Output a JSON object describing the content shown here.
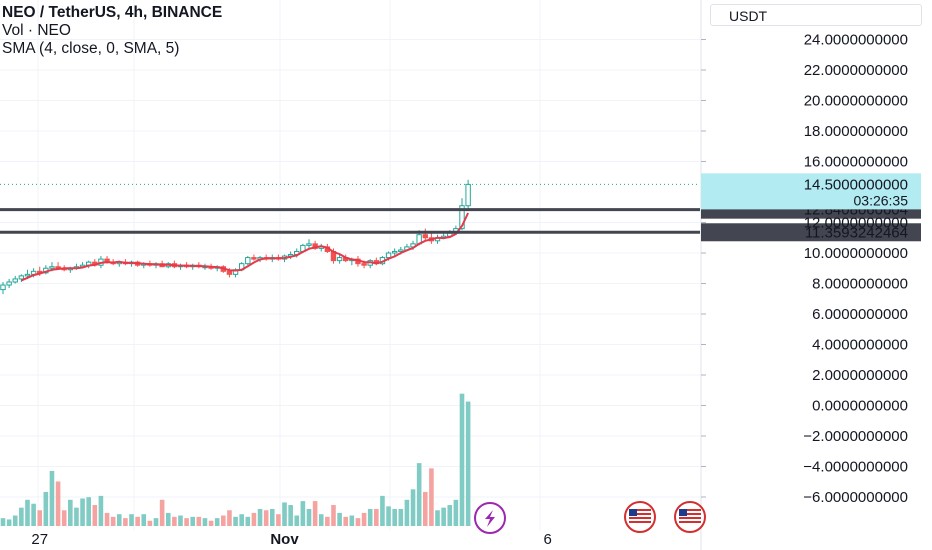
{
  "legend": {
    "title": "NEO / TetherUS, 4h, BINANCE",
    "volume": "Vol · NEO",
    "sma": "SMA (4, close, 0, SMA, 5)"
  },
  "currency_label": "USDT",
  "price_badge": {
    "price": "14.5000000000",
    "countdown": "03:26:35"
  },
  "levels": [
    {
      "label": "12.8408060604",
      "value": 12.8408060604
    },
    {
      "label": "11.3593242464",
      "value": 11.3593242464
    }
  ],
  "colors": {
    "up": "#26a69a",
    "down": "#ef5350",
    "sma": "#e6394a",
    "level_line": "#434651",
    "badge_bg": "#b2ebf2"
  },
  "chart_data": {
    "type": "candlestick",
    "title": "NEO / TetherUS, 4h, BINANCE",
    "y_tick_labels": [
      "24.0000000000",
      "22.0000000000",
      "20.0000000000",
      "18.0000000000",
      "16.0000000000",
      "12.0000000000",
      "10.0000000000",
      "8.0000000000",
      "6.0000000000",
      "4.0000000000",
      "2.0000000000",
      "0.0000000000",
      "−2.0000000000",
      "−4.0000000000",
      "−6.0000000000"
    ],
    "y_ticks": [
      24,
      22,
      20,
      18,
      16,
      12,
      10,
      8,
      6,
      4,
      2,
      0,
      -2,
      -4,
      -6
    ],
    "ylim": [
      -6.6,
      25.3
    ],
    "x_tick_labels": [
      "27",
      "Nov",
      "6"
    ],
    "x_ticks_index": [
      6,
      46,
      89
    ],
    "candles": [
      {
        "o": 7.6,
        "h": 8.1,
        "l": 7.3,
        "c": 7.9,
        "v": 0.6
      },
      {
        "o": 7.9,
        "h": 8.3,
        "l": 7.7,
        "c": 8.1,
        "v": 0.5
      },
      {
        "o": 8.1,
        "h": 8.5,
        "l": 8.0,
        "c": 8.3,
        "v": 0.8
      },
      {
        "o": 8.3,
        "h": 8.6,
        "l": 8.1,
        "c": 8.5,
        "v": 1.4
      },
      {
        "o": 8.5,
        "h": 8.9,
        "l": 8.3,
        "c": 8.6,
        "v": 2.0
      },
      {
        "o": 8.6,
        "h": 9.0,
        "l": 8.4,
        "c": 8.8,
        "v": 1.7
      },
      {
        "o": 8.8,
        "h": 9.1,
        "l": 8.5,
        "c": 8.7,
        "v": 1.2
      },
      {
        "o": 8.7,
        "h": 9.2,
        "l": 8.6,
        "c": 9.0,
        "v": 2.6
      },
      {
        "o": 9.0,
        "h": 9.4,
        "l": 8.8,
        "c": 9.1,
        "v": 4.2
      },
      {
        "o": 9.1,
        "h": 9.4,
        "l": 8.9,
        "c": 9.0,
        "v": 3.4
      },
      {
        "o": 9.0,
        "h": 9.2,
        "l": 8.8,
        "c": 8.9,
        "v": 1.2
      },
      {
        "o": 8.9,
        "h": 9.1,
        "l": 8.7,
        "c": 9.0,
        "v": 2.0
      },
      {
        "o": 9.0,
        "h": 9.3,
        "l": 8.9,
        "c": 9.1,
        "v": 1.4
      },
      {
        "o": 9.1,
        "h": 9.4,
        "l": 9.0,
        "c": 9.2,
        "v": 2.1
      },
      {
        "o": 9.2,
        "h": 9.5,
        "l": 9.0,
        "c": 9.4,
        "v": 2.2
      },
      {
        "o": 9.4,
        "h": 9.6,
        "l": 9.1,
        "c": 9.2,
        "v": 1.6
      },
      {
        "o": 9.2,
        "h": 9.8,
        "l": 9.0,
        "c": 9.6,
        "v": 2.3
      },
      {
        "o": 9.6,
        "h": 9.8,
        "l": 9.3,
        "c": 9.4,
        "v": 1.0
      },
      {
        "o": 9.4,
        "h": 9.6,
        "l": 9.2,
        "c": 9.3,
        "v": 0.7
      },
      {
        "o": 9.3,
        "h": 9.5,
        "l": 9.1,
        "c": 9.4,
        "v": 0.9
      },
      {
        "o": 9.4,
        "h": 9.6,
        "l": 9.2,
        "c": 9.3,
        "v": 0.6
      },
      {
        "o": 9.3,
        "h": 9.5,
        "l": 9.1,
        "c": 9.4,
        "v": 0.9
      },
      {
        "o": 9.4,
        "h": 9.5,
        "l": 9.1,
        "c": 9.2,
        "v": 0.7
      },
      {
        "o": 9.2,
        "h": 9.4,
        "l": 9.0,
        "c": 9.3,
        "v": 0.9
      },
      {
        "o": 9.3,
        "h": 9.5,
        "l": 9.1,
        "c": 9.2,
        "v": 0.4
      },
      {
        "o": 9.2,
        "h": 9.4,
        "l": 9.0,
        "c": 9.3,
        "v": 0.6
      },
      {
        "o": 9.3,
        "h": 9.5,
        "l": 9.1,
        "c": 9.1,
        "v": 2.0
      },
      {
        "o": 9.1,
        "h": 9.4,
        "l": 9.0,
        "c": 9.3,
        "v": 1.0
      },
      {
        "o": 9.3,
        "h": 9.5,
        "l": 9.0,
        "c": 9.1,
        "v": 0.7
      },
      {
        "o": 9.1,
        "h": 9.3,
        "l": 8.9,
        "c": 9.2,
        "v": 0.8
      },
      {
        "o": 9.2,
        "h": 9.4,
        "l": 9.0,
        "c": 9.1,
        "v": 0.6
      },
      {
        "o": 9.1,
        "h": 9.3,
        "l": 8.9,
        "c": 9.2,
        "v": 0.7
      },
      {
        "o": 9.2,
        "h": 9.4,
        "l": 9.0,
        "c": 9.1,
        "v": 0.7
      },
      {
        "o": 9.1,
        "h": 9.3,
        "l": 8.9,
        "c": 9.1,
        "v": 0.6
      },
      {
        "o": 9.1,
        "h": 9.3,
        "l": 8.9,
        "c": 9.0,
        "v": 0.4
      },
      {
        "o": 9.0,
        "h": 9.2,
        "l": 8.8,
        "c": 9.1,
        "v": 0.6
      },
      {
        "o": 9.1,
        "h": 9.2,
        "l": 8.7,
        "c": 8.8,
        "v": 0.8
      },
      {
        "o": 8.8,
        "h": 9.0,
        "l": 8.4,
        "c": 8.6,
        "v": 1.2
      },
      {
        "o": 8.6,
        "h": 9.0,
        "l": 8.4,
        "c": 8.9,
        "v": 0.7
      },
      {
        "o": 8.9,
        "h": 9.4,
        "l": 8.8,
        "c": 9.3,
        "v": 0.9
      },
      {
        "o": 9.3,
        "h": 9.8,
        "l": 9.2,
        "c": 9.7,
        "v": 0.7
      },
      {
        "o": 9.7,
        "h": 9.9,
        "l": 9.5,
        "c": 9.6,
        "v": 1.0
      },
      {
        "o": 9.6,
        "h": 9.8,
        "l": 9.4,
        "c": 9.7,
        "v": 1.3
      },
      {
        "o": 9.7,
        "h": 9.9,
        "l": 9.5,
        "c": 9.6,
        "v": 1.2
      },
      {
        "o": 9.6,
        "h": 9.9,
        "l": 9.4,
        "c": 9.7,
        "v": 1.3
      },
      {
        "o": 9.7,
        "h": 9.9,
        "l": 9.5,
        "c": 9.6,
        "v": 0.9
      },
      {
        "o": 9.6,
        "h": 9.9,
        "l": 9.4,
        "c": 9.8,
        "v": 1.8
      },
      {
        "o": 9.8,
        "h": 10.1,
        "l": 9.6,
        "c": 9.9,
        "v": 1.6
      },
      {
        "o": 9.9,
        "h": 10.3,
        "l": 9.7,
        "c": 10.1,
        "v": 0.8
      },
      {
        "o": 10.1,
        "h": 10.6,
        "l": 10.0,
        "c": 10.5,
        "v": 1.9
      },
      {
        "o": 10.5,
        "h": 10.9,
        "l": 10.3,
        "c": 10.6,
        "v": 1.3
      },
      {
        "o": 10.6,
        "h": 10.8,
        "l": 10.2,
        "c": 10.3,
        "v": 1.9
      },
      {
        "o": 10.3,
        "h": 10.6,
        "l": 10.1,
        "c": 10.4,
        "v": 0.9
      },
      {
        "o": 10.4,
        "h": 10.6,
        "l": 10.0,
        "c": 10.1,
        "v": 0.7
      },
      {
        "o": 10.1,
        "h": 10.3,
        "l": 9.3,
        "c": 9.5,
        "v": 1.6
      },
      {
        "o": 9.5,
        "h": 9.9,
        "l": 9.3,
        "c": 9.7,
        "v": 1.0
      },
      {
        "o": 9.7,
        "h": 9.9,
        "l": 9.4,
        "c": 9.5,
        "v": 0.7
      },
      {
        "o": 9.5,
        "h": 9.7,
        "l": 9.2,
        "c": 9.6,
        "v": 0.8
      },
      {
        "o": 9.6,
        "h": 9.8,
        "l": 9.1,
        "c": 9.3,
        "v": 0.6
      },
      {
        "o": 9.3,
        "h": 9.5,
        "l": 9.0,
        "c": 9.2,
        "v": 1.0
      },
      {
        "o": 9.2,
        "h": 9.6,
        "l": 9.0,
        "c": 9.5,
        "v": 1.3
      },
      {
        "o": 9.5,
        "h": 9.7,
        "l": 9.2,
        "c": 9.3,
        "v": 1.3
      },
      {
        "o": 9.3,
        "h": 9.8,
        "l": 9.2,
        "c": 9.7,
        "v": 2.3
      },
      {
        "o": 9.7,
        "h": 10.1,
        "l": 9.5,
        "c": 10.0,
        "v": 1.5
      },
      {
        "o": 10.0,
        "h": 10.3,
        "l": 9.8,
        "c": 10.1,
        "v": 1.3
      },
      {
        "o": 10.1,
        "h": 10.4,
        "l": 9.9,
        "c": 10.2,
        "v": 1.3
      },
      {
        "o": 10.2,
        "h": 10.6,
        "l": 10.1,
        "c": 10.4,
        "v": 2.0
      },
      {
        "o": 10.4,
        "h": 10.8,
        "l": 10.2,
        "c": 10.6,
        "v": 2.8
      },
      {
        "o": 10.6,
        "h": 11.5,
        "l": 10.5,
        "c": 11.2,
        "v": 4.8
      },
      {
        "o": 11.2,
        "h": 11.6,
        "l": 10.8,
        "c": 11.0,
        "v": 2.6
      },
      {
        "o": 11.0,
        "h": 11.3,
        "l": 10.6,
        "c": 10.8,
        "v": 4.4
      },
      {
        "o": 10.8,
        "h": 11.2,
        "l": 10.6,
        "c": 11.0,
        "v": 1.2
      },
      {
        "o": 11.0,
        "h": 11.4,
        "l": 10.9,
        "c": 11.1,
        "v": 1.4
      },
      {
        "o": 11.1,
        "h": 11.5,
        "l": 11.0,
        "c": 11.3,
        "v": 1.6
      },
      {
        "o": 11.3,
        "h": 11.8,
        "l": 11.2,
        "c": 11.6,
        "v": 2.0
      },
      {
        "o": 11.6,
        "h": 13.6,
        "l": 11.5,
        "c": 13.1,
        "v": 10.1
      },
      {
        "o": 13.1,
        "h": 14.8,
        "l": 12.9,
        "c": 14.5,
        "v": 9.5
      }
    ],
    "volume_series": "Vol · NEO",
    "sma_series": "SMA (4, close, 0, SMA, 5)"
  }
}
